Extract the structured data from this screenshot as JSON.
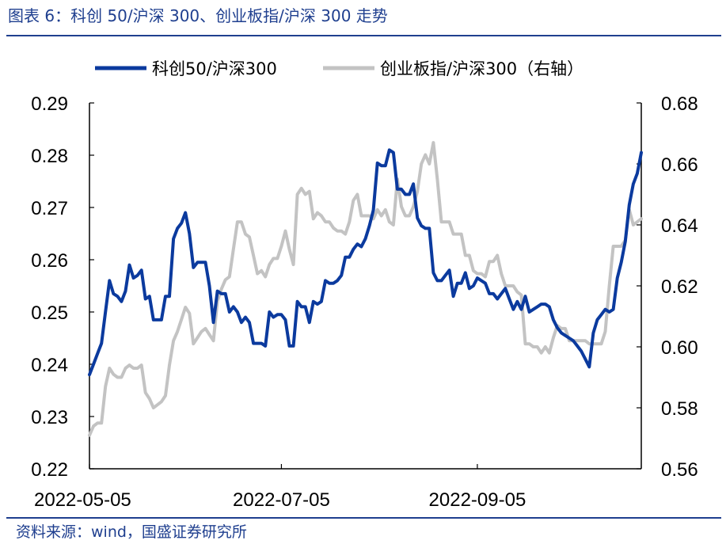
{
  "header": {
    "title": "图表 6：科创 50/沪深 300、创业板指/沪深 300 走势"
  },
  "footer": {
    "source": "资料来源：wind，国盛证券研究所"
  },
  "colors": {
    "accent": "#1f3f8f",
    "series_left": "#0b3a9e",
    "series_right": "#c3c3c3"
  },
  "chart_data": {
    "type": "line",
    "title": "",
    "xlabel": "",
    "ylabel": "",
    "x_tick_labels": [
      "2022-05-05",
      "2022-07-05",
      "2022-09-05"
    ],
    "y_left": {
      "lim": [
        0.22,
        0.29
      ],
      "ticks": [
        "0.22",
        "0.23",
        "0.24",
        "0.25",
        "0.26",
        "0.27",
        "0.28",
        "0.29"
      ]
    },
    "y_right": {
      "lim": [
        0.56,
        0.68
      ],
      "ticks": [
        "0.56",
        "0.58",
        "0.60",
        "0.62",
        "0.64",
        "0.66",
        "0.68"
      ]
    },
    "legend": {
      "placement": "top"
    },
    "grid": false,
    "series": [
      {
        "name": "科创50/沪深300",
        "axis": "left",
        "values": [
          0.238,
          0.24,
          0.242,
          0.244,
          0.25,
          0.256,
          0.2535,
          0.253,
          0.252,
          0.254,
          0.259,
          0.2565,
          0.257,
          0.258,
          0.2525,
          0.253,
          0.2485,
          0.2485,
          0.2485,
          0.253,
          0.253,
          0.264,
          0.266,
          0.267,
          0.269,
          0.265,
          0.2585,
          0.2595,
          0.2595,
          0.2595,
          0.255,
          0.248,
          0.254,
          0.2535,
          0.2535,
          0.25,
          0.251,
          0.25,
          0.248,
          0.249,
          0.248,
          0.244,
          0.244,
          0.244,
          0.2435,
          0.25,
          0.249,
          0.2495,
          0.2495,
          0.2485,
          0.2435,
          0.2435,
          0.252,
          0.251,
          0.251,
          0.248,
          0.252,
          0.2515,
          0.252,
          0.256,
          0.2555,
          0.2555,
          0.256,
          0.257,
          0.2605,
          0.2605,
          0.262,
          0.263,
          0.2625,
          0.264,
          0.2665,
          0.2695,
          0.2785,
          0.278,
          0.278,
          0.281,
          0.2805,
          0.2735,
          0.2735,
          0.2725,
          0.2725,
          0.2745,
          0.268,
          0.2665,
          0.266,
          0.266,
          0.2575,
          0.256,
          0.256,
          0.257,
          0.258,
          0.253,
          0.2555,
          0.2555,
          0.2575,
          0.2545,
          0.255,
          0.2565,
          0.256,
          0.2555,
          0.2535,
          0.2535,
          0.2525,
          0.2535,
          0.2545,
          0.2525,
          0.2505,
          0.252,
          0.2505,
          0.253,
          0.25,
          0.2505,
          0.251,
          0.2515,
          0.2515,
          0.251,
          0.2485,
          0.247,
          0.246,
          0.2455,
          0.245,
          0.2445,
          0.2435,
          0.2425,
          0.241,
          0.2395,
          0.246,
          0.2485,
          0.2495,
          0.2505,
          0.25,
          0.2505,
          0.2565,
          0.2595,
          0.2635,
          0.2705,
          0.2745,
          0.2765,
          0.2805
        ]
      },
      {
        "name": "创业板指/沪深300（右轴）",
        "axis": "right",
        "values": [
          0.571,
          0.574,
          0.575,
          0.575,
          0.587,
          0.593,
          0.591,
          0.59,
          0.59,
          0.593,
          0.594,
          0.593,
          0.593,
          0.594,
          0.585,
          0.583,
          0.58,
          0.581,
          0.582,
          0.584,
          0.594,
          0.602,
          0.605,
          0.609,
          0.613,
          0.611,
          0.601,
          0.603,
          0.605,
          0.606,
          0.604,
          0.602,
          0.615,
          0.619,
          0.622,
          0.623,
          0.632,
          0.641,
          0.641,
          0.637,
          0.636,
          0.63,
          0.624,
          0.625,
          0.623,
          0.627,
          0.629,
          0.629,
          0.633,
          0.638,
          0.632,
          0.627,
          0.65,
          0.652,
          0.65,
          0.651,
          0.642,
          0.644,
          0.643,
          0.641,
          0.641,
          0.639,
          0.638,
          0.638,
          0.637,
          0.641,
          0.648,
          0.65,
          0.643,
          0.643,
          0.643,
          0.642,
          0.645,
          0.643,
          0.645,
          0.641,
          0.64,
          0.655,
          0.646,
          0.643,
          0.643,
          0.646,
          0.651,
          0.66,
          0.663,
          0.66,
          0.667,
          0.655,
          0.641,
          0.641,
          0.641,
          0.637,
          0.637,
          0.637,
          0.63,
          0.63,
          0.625,
          0.624,
          0.624,
          0.623,
          0.628,
          0.628,
          0.63,
          0.624,
          0.62,
          0.62,
          0.62,
          0.618,
          0.617,
          0.601,
          0.601,
          0.6,
          0.6,
          0.598,
          0.6,
          0.598,
          0.603,
          0.607,
          0.606,
          0.606,
          0.602,
          0.602,
          0.602,
          0.602,
          0.602,
          0.601,
          0.601,
          0.601,
          0.601,
          0.605,
          0.62,
          0.633,
          0.633,
          0.633,
          0.635,
          0.645,
          0.64,
          0.641,
          0.642
        ]
      }
    ]
  }
}
